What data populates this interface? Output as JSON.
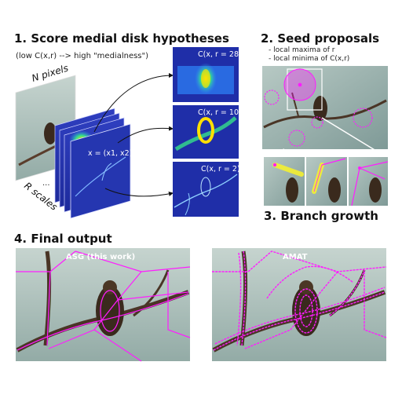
{
  "section1": {
    "title": "1. Score medial disk hypotheses",
    "caption": "(low C(x,r) --> high \"medialness\")",
    "n_pixels": "N pixels",
    "r_scales": "R scales",
    "dots": "...",
    "formula": "x = (x1, x2)",
    "panels": [
      "C(x, r = 28)",
      "C(x, r = 10)",
      "C(x, r = 2)"
    ]
  },
  "section2": {
    "title": "2. Seed proposals",
    "bullets": [
      "- local maxima of r",
      "- local minima of C(x,r)"
    ]
  },
  "section3": {
    "title": "3. Branch growth"
  },
  "section4": {
    "title": "4. Final output",
    "left_label": "ASG (this work)",
    "right_label": "AMAT"
  },
  "colors": {
    "accent": "#ff1cff",
    "yellow": "#f4f032",
    "background": "#ffffff"
  }
}
